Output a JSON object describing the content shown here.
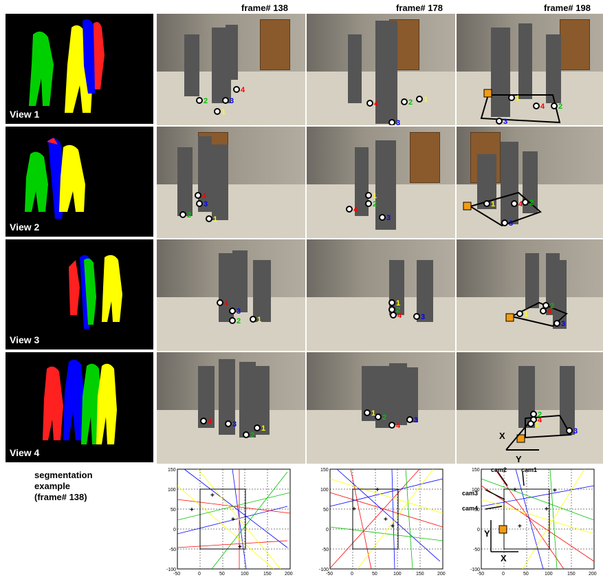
{
  "headers": [
    "frame# 138",
    "frame# 178",
    "frame# 198"
  ],
  "view_labels": [
    "View 1",
    "View 2",
    "View 3",
    "View 4"
  ],
  "caption": {
    "line1": "segmentation",
    "line2": "example",
    "line3": "(frame# 138)"
  },
  "person_labels": [
    "1",
    "2",
    "3",
    "4"
  ],
  "colors": {
    "person1": "#ffff00",
    "person2": "#00c000",
    "person3": "#0000ff",
    "person4": "#ff0000",
    "marker": "#f39c12"
  },
  "axis_labels": {
    "x": "X",
    "y": "Y"
  },
  "cam_labels": [
    "cam1",
    "cam2",
    "cam3",
    "cam4"
  ],
  "plots": {
    "xticks": [
      "-50",
      "0",
      "50",
      "100",
      "150",
      "200"
    ],
    "yticks": [
      "150",
      "100",
      "50",
      "0",
      "-50",
      "-100"
    ],
    "xlim": [
      -50,
      200
    ],
    "ylim": [
      -100,
      150
    ]
  }
}
